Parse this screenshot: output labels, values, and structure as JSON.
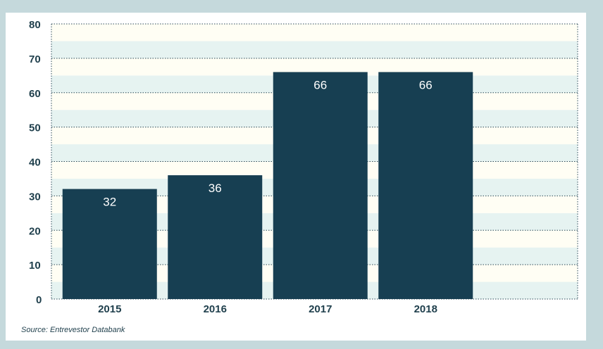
{
  "chart_data": {
    "type": "bar",
    "categories": [
      "2015",
      "2016",
      "2017",
      "2018"
    ],
    "values": [
      32,
      36,
      66,
      66
    ],
    "title": "",
    "xlabel": "",
    "ylabel": "",
    "ylim": [
      0,
      80
    ],
    "yticks": [
      0,
      10,
      20,
      30,
      40,
      50,
      60,
      70,
      80
    ],
    "grid": true,
    "legend": "none",
    "colors": {
      "bar": "#173f52",
      "band_light": "#fffef4",
      "band_dark": "#e6f3f1",
      "grid": "#2b4a58",
      "text": "#1f3f4c",
      "page_bg": "#c5d9dc"
    }
  },
  "source": "Source: Entrevestor Databank"
}
